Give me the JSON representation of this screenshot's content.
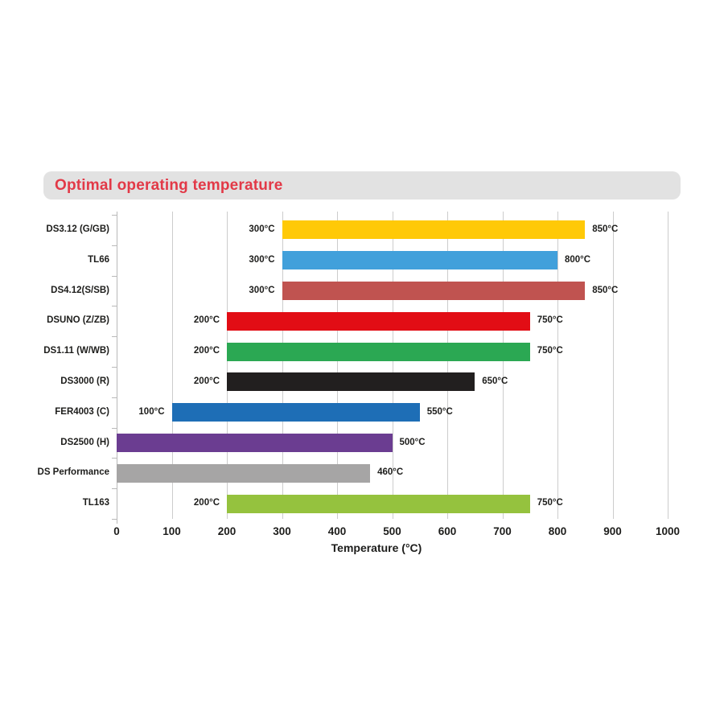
{
  "title": {
    "text": "Optimal operating temperature",
    "color": "#e23947",
    "banner_bg": "#e2e2e2"
  },
  "chart_data": {
    "type": "bar",
    "orientation": "horizontal",
    "title": "Optimal operating temperature",
    "xlabel": "Temperature (°C)",
    "xlim": [
      0,
      1000
    ],
    "x_ticks": [
      0,
      100,
      200,
      300,
      400,
      500,
      600,
      700,
      800,
      900,
      1000
    ],
    "grid": true,
    "text_color": "#1d1d1b",
    "gridline_color": "#cccccc",
    "rows": [
      {
        "label": "DS3.12 (G/GB)",
        "start": 300,
        "end": 850,
        "start_label": "300°C",
        "end_label": "850°C",
        "color": "#ffc907"
      },
      {
        "label": "TL66",
        "start": 300,
        "end": 800,
        "start_label": "300°C",
        "end_label": "800°C",
        "color": "#41a0db"
      },
      {
        "label": "DS4.12(S/SB)",
        "start": 300,
        "end": 850,
        "start_label": "300°C",
        "end_label": "850°C",
        "color": "#c05350"
      },
      {
        "label": "DSUNO (Z/ZB)",
        "start": 200,
        "end": 750,
        "start_label": "200°C",
        "end_label": "750°C",
        "color": "#e20d15"
      },
      {
        "label": "DS1.11 (W/WB)",
        "start": 200,
        "end": 750,
        "start_label": "200°C",
        "end_label": "750°C",
        "color": "#2ba853"
      },
      {
        "label": "DS3000 (R)",
        "start": 200,
        "end": 650,
        "start_label": "200°C",
        "end_label": "650°C",
        "color": "#221f1f"
      },
      {
        "label": "FER4003 (C)",
        "start": 100,
        "end": 550,
        "start_label": "100°C",
        "end_label": "550°C",
        "color": "#1e6eb6"
      },
      {
        "label": "DS2500 (H)",
        "start": 0,
        "end": 500,
        "start_label": "",
        "end_label": "500°C",
        "color": "#6b3d91"
      },
      {
        "label": "DS Performance",
        "start": 0,
        "end": 460,
        "start_label": "",
        "end_label": "460°C",
        "color": "#a6a5a5"
      },
      {
        "label": "TL163",
        "start": 200,
        "end": 750,
        "start_label": "200°C",
        "end_label": "750°C",
        "color": "#95c23e"
      }
    ]
  }
}
